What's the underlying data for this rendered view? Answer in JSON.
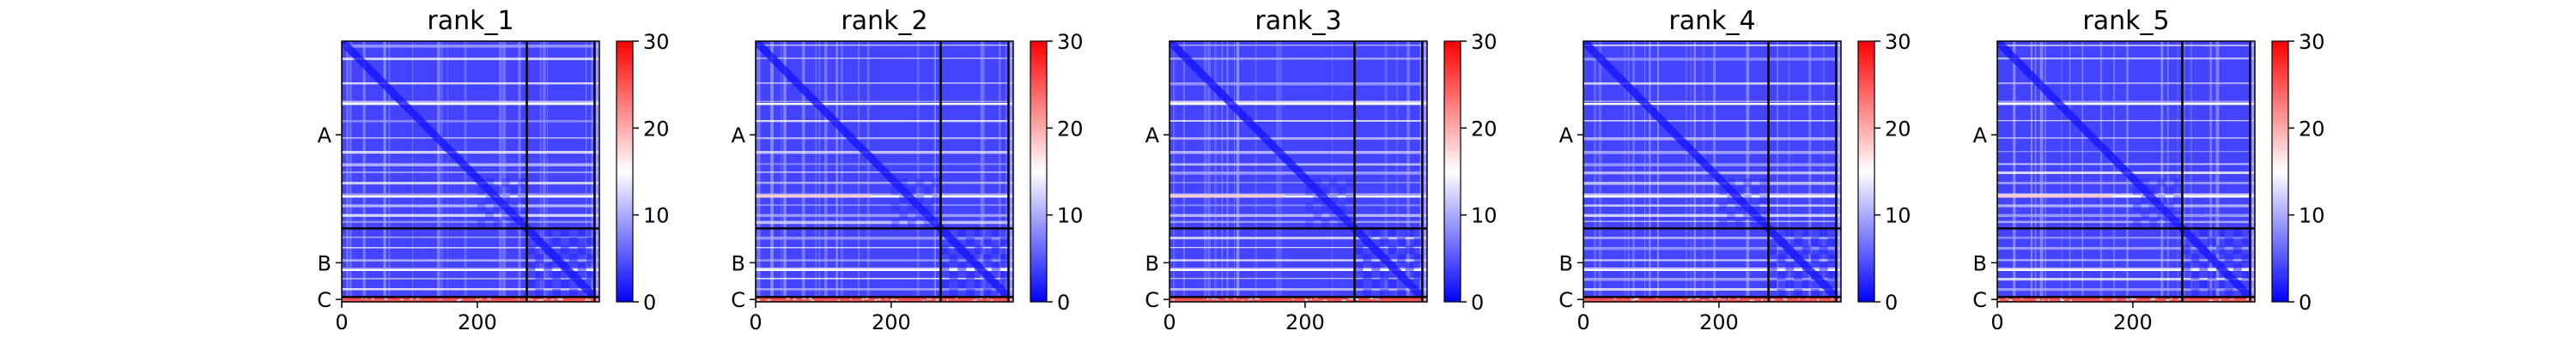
{
  "chart_data": [
    {
      "type": "heatmap",
      "title": "rank_1",
      "xlim": [
        0,
        380
      ],
      "x_ticks": [
        {
          "value": 0,
          "label": "0"
        },
        {
          "value": 200,
          "label": "200"
        }
      ],
      "chains": [
        {
          "label": "A",
          "start": 0,
          "end": 273
        },
        {
          "label": "B",
          "start": 273,
          "end": 373
        },
        {
          "label": "C",
          "start": 373,
          "end": 380
        }
      ],
      "colorbar": {
        "min": 0,
        "max": 30,
        "ticks": [
          "0",
          "10",
          "20",
          "30"
        ],
        "colors": [
          "#0000ff",
          "#ffffff",
          "#ff0000"
        ]
      },
      "pae_off_diag_B_C": 25,
      "hot_row": false
    },
    {
      "type": "heatmap",
      "title": "rank_2",
      "xlim": [
        0,
        380
      ],
      "x_ticks": [
        {
          "value": 0,
          "label": "0"
        },
        {
          "value": 200,
          "label": "200"
        }
      ],
      "chains": [
        {
          "label": "A",
          "start": 0,
          "end": 273
        },
        {
          "label": "B",
          "start": 273,
          "end": 373
        },
        {
          "label": "C",
          "start": 373,
          "end": 380
        }
      ],
      "colorbar": {
        "min": 0,
        "max": 30,
        "ticks": [
          "0",
          "10",
          "20",
          "30"
        ],
        "colors": [
          "#0000ff",
          "#ffffff",
          "#ff0000"
        ]
      },
      "pae_off_diag_B_C": 25,
      "hot_row": true
    },
    {
      "type": "heatmap",
      "title": "rank_3",
      "xlim": [
        0,
        380
      ],
      "x_ticks": [
        {
          "value": 0,
          "label": "0"
        },
        {
          "value": 200,
          "label": "200"
        }
      ],
      "chains": [
        {
          "label": "A",
          "start": 0,
          "end": 273
        },
        {
          "label": "B",
          "start": 273,
          "end": 373
        },
        {
          "label": "C",
          "start": 373,
          "end": 380
        }
      ],
      "colorbar": {
        "min": 0,
        "max": 30,
        "ticks": [
          "0",
          "10",
          "20",
          "30"
        ],
        "colors": [
          "#0000ff",
          "#ffffff",
          "#ff0000"
        ]
      },
      "pae_off_diag_B_C": 25,
      "hot_row": true
    },
    {
      "type": "heatmap",
      "title": "rank_4",
      "xlim": [
        0,
        380
      ],
      "x_ticks": [
        {
          "value": 0,
          "label": "0"
        },
        {
          "value": 200,
          "label": "200"
        }
      ],
      "chains": [
        {
          "label": "A",
          "start": 0,
          "end": 273
        },
        {
          "label": "B",
          "start": 273,
          "end": 373
        },
        {
          "label": "C",
          "start": 373,
          "end": 380
        }
      ],
      "colorbar": {
        "min": 0,
        "max": 30,
        "ticks": [
          "0",
          "10",
          "20",
          "30"
        ],
        "colors": [
          "#0000ff",
          "#ffffff",
          "#ff0000"
        ]
      },
      "pae_off_diag_B_C": 25,
      "hot_row": false
    },
    {
      "type": "heatmap",
      "title": "rank_5",
      "xlim": [
        0,
        380
      ],
      "x_ticks": [
        {
          "value": 0,
          "label": "0"
        },
        {
          "value": 200,
          "label": "200"
        }
      ],
      "chains": [
        {
          "label": "A",
          "start": 0,
          "end": 273
        },
        {
          "label": "B",
          "start": 273,
          "end": 373
        },
        {
          "label": "C",
          "start": 373,
          "end": 380
        }
      ],
      "colorbar": {
        "min": 0,
        "max": 30,
        "ticks": [
          "0",
          "10",
          "20",
          "30"
        ],
        "colors": [
          "#0000ff",
          "#ffffff",
          "#ff0000"
        ]
      },
      "pae_off_diag_B_C": 25,
      "hot_row": true
    }
  ]
}
